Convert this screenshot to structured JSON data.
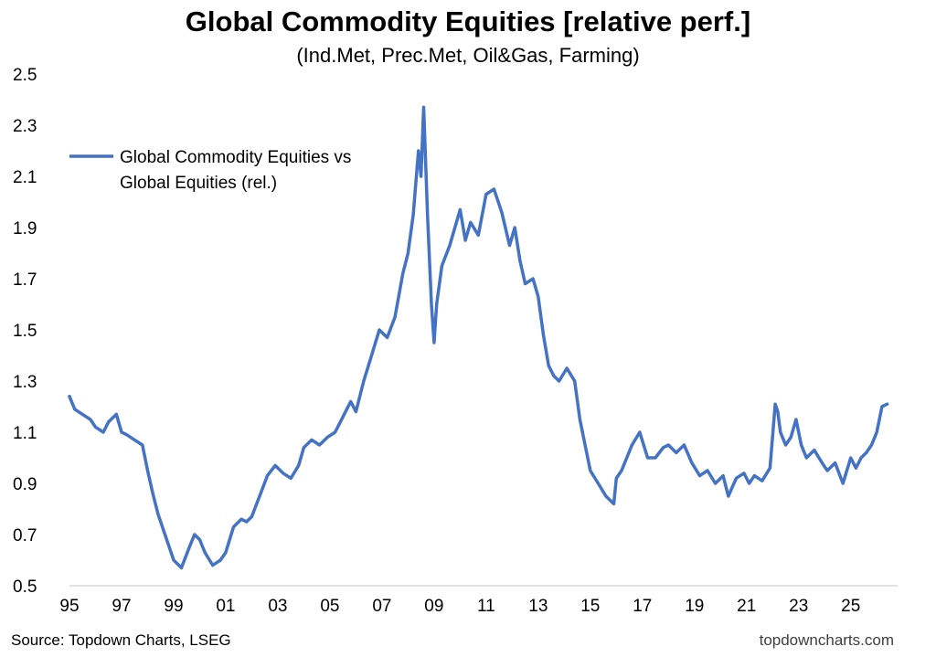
{
  "title": "Global Commodity Equities [relative perf.]",
  "subtitle": "(Ind.Met, Prec.Met, Oil&Gas, Farming)",
  "source": "Source: Topdown Charts, LSEG",
  "credit": "topdowncharts.com",
  "chart_data": {
    "type": "line",
    "title": "Global Commodity Equities [relative perf.]",
    "subtitle": "(Ind.Met, Prec.Met, Oil&Gas, Farming)",
    "xlabel": "",
    "ylabel": "",
    "ylim": [
      0.5,
      2.5
    ],
    "xlim": [
      1995.0,
      2026.8
    ],
    "yticks": [
      0.5,
      0.7,
      0.9,
      1.1,
      1.3,
      1.5,
      1.7,
      1.9,
      2.1,
      2.3,
      2.5
    ],
    "ytick_labels": [
      "0.5",
      "0.7",
      "0.9",
      "1.1",
      "1.3",
      "1.5",
      "1.7",
      "1.9",
      "2.1",
      "2.3",
      "2.5"
    ],
    "xticks": [
      1995,
      1997,
      1999,
      2001,
      2003,
      2005,
      2007,
      2009,
      2011,
      2013,
      2015,
      2017,
      2019,
      2021,
      2023,
      2025
    ],
    "xtick_labels": [
      "95",
      "97",
      "99",
      "01",
      "03",
      "05",
      "07",
      "09",
      "11",
      "13",
      "15",
      "17",
      "19",
      "21",
      "23",
      "25"
    ],
    "grid": false,
    "legend_position": "top-left",
    "series": [
      {
        "name": "Global Commodity Equities vs Global Equities (rel.)",
        "color": "#4472C4",
        "x": [
          1995.0,
          1995.2,
          1995.5,
          1995.8,
          1996.0,
          1996.3,
          1996.5,
          1996.8,
          1997.0,
          1997.2,
          1997.5,
          1997.8,
          1998.0,
          1998.2,
          1998.4,
          1998.6,
          1998.8,
          1999.0,
          1999.3,
          1999.6,
          1999.8,
          2000.0,
          2000.2,
          2000.5,
          2000.8,
          2001.0,
          2001.3,
          2001.6,
          2001.8,
          2002.0,
          2002.3,
          2002.6,
          2002.9,
          2003.2,
          2003.5,
          2003.8,
          2004.0,
          2004.3,
          2004.6,
          2004.9,
          2005.2,
          2005.5,
          2005.8,
          2006.0,
          2006.3,
          2006.6,
          2006.9,
          2007.2,
          2007.5,
          2007.8,
          2008.0,
          2008.2,
          2008.4,
          2008.5,
          2008.6,
          2008.75,
          2008.9,
          2009.0,
          2009.1,
          2009.3,
          2009.6,
          2009.8,
          2010.0,
          2010.2,
          2010.4,
          2010.7,
          2011.0,
          2011.3,
          2011.6,
          2011.9,
          2012.1,
          2012.3,
          2012.5,
          2012.8,
          2013.0,
          2013.2,
          2013.4,
          2013.6,
          2013.8,
          2014.1,
          2014.4,
          2014.6,
          2014.8,
          2015.0,
          2015.3,
          2015.6,
          2015.9,
          2016.0,
          2016.2,
          2016.4,
          2016.6,
          2016.9,
          2017.2,
          2017.5,
          2017.8,
          2018.0,
          2018.3,
          2018.6,
          2018.9,
          2019.2,
          2019.5,
          2019.8,
          2020.1,
          2020.3,
          2020.6,
          2020.9,
          2021.1,
          2021.3,
          2021.6,
          2021.9,
          2022.1,
          2022.2,
          2022.3,
          2022.5,
          2022.7,
          2022.9,
          2023.1,
          2023.3,
          2023.6,
          2023.9,
          2024.1,
          2024.4,
          2024.7,
          2025.0,
          2025.2,
          2025.4,
          2025.6,
          2025.8,
          2026.0,
          2026.2,
          2026.4
        ],
        "values": [
          1.24,
          1.19,
          1.17,
          1.15,
          1.12,
          1.1,
          1.14,
          1.17,
          1.1,
          1.09,
          1.07,
          1.05,
          0.95,
          0.86,
          0.78,
          0.72,
          0.66,
          0.6,
          0.57,
          0.65,
          0.7,
          0.68,
          0.63,
          0.58,
          0.6,
          0.63,
          0.73,
          0.76,
          0.75,
          0.77,
          0.85,
          0.93,
          0.97,
          0.94,
          0.92,
          0.97,
          1.04,
          1.07,
          1.05,
          1.08,
          1.1,
          1.16,
          1.22,
          1.18,
          1.3,
          1.4,
          1.5,
          1.47,
          1.55,
          1.72,
          1.8,
          1.95,
          2.2,
          2.1,
          2.37,
          1.95,
          1.6,
          1.45,
          1.6,
          1.75,
          1.83,
          1.9,
          1.97,
          1.85,
          1.92,
          1.87,
          2.03,
          2.05,
          1.96,
          1.83,
          1.9,
          1.77,
          1.68,
          1.7,
          1.63,
          1.48,
          1.36,
          1.32,
          1.3,
          1.35,
          1.3,
          1.15,
          1.05,
          0.95,
          0.9,
          0.85,
          0.82,
          0.92,
          0.95,
          1.0,
          1.05,
          1.1,
          1.0,
          1.0,
          1.04,
          1.05,
          1.02,
          1.05,
          0.98,
          0.93,
          0.95,
          0.9,
          0.93,
          0.85,
          0.92,
          0.94,
          0.9,
          0.93,
          0.91,
          0.96,
          1.21,
          1.18,
          1.1,
          1.05,
          1.08,
          1.15,
          1.05,
          1.0,
          1.03,
          0.98,
          0.95,
          0.98,
          0.9,
          1.0,
          0.96,
          1.0,
          1.02,
          1.05,
          1.1,
          1.2,
          1.21
        ]
      }
    ]
  }
}
